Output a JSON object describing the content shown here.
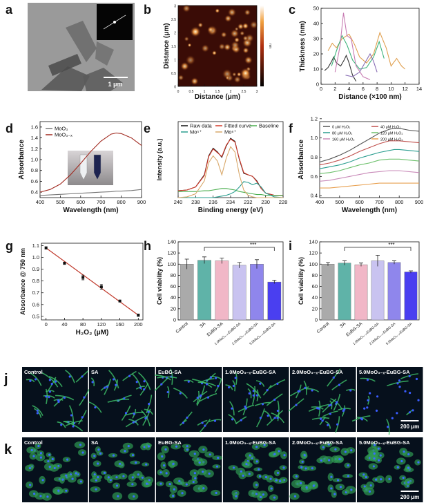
{
  "chart_data": [
    {
      "type": "image",
      "panel": "b",
      "xlabel": "Distance (μm)",
      "ylabel": "Distance (μm)",
      "colorbar_label": "nm",
      "xlim": [
        0,
        3
      ],
      "xticks": [
        0,
        0.5,
        1,
        1.5,
        2,
        2.5,
        3
      ],
      "ylim": [
        0,
        3
      ],
      "yticks": [
        0,
        0.5,
        1,
        1.5,
        2,
        2.5,
        3
      ]
    },
    {
      "type": "line",
      "panel": "c",
      "xlabel": "Distance (×100 nm)",
      "ylabel": "Thickness (nm)",
      "xlim": [
        0,
        14
      ],
      "xticks": [
        0,
        2,
        4,
        6,
        8,
        10,
        12,
        14
      ],
      "ylim": [
        0,
        50
      ],
      "yticks": [
        0,
        10,
        20,
        30,
        40,
        50
      ],
      "series": [
        {
          "color": "#333333",
          "x": [
            0.5,
            1,
            1.5,
            1.8,
            2.2,
            2.8,
            3.3,
            3.6,
            4,
            4.5,
            5
          ],
          "values": [
            9,
            11,
            15,
            18,
            14,
            12,
            16,
            19,
            14,
            6,
            2
          ]
        },
        {
          "color": "#e0a050",
          "x": [
            1,
            1.6,
            2.2,
            3,
            4,
            4.8,
            5.5,
            6.5,
            7.5,
            8.4,
            9.3,
            10,
            10.8,
            11.5,
            12
          ],
          "values": [
            22,
            27,
            24,
            30,
            33,
            26,
            18,
            14,
            20,
            34,
            24,
            12,
            17,
            12,
            10
          ]
        },
        {
          "color": "#3bb37a",
          "x": [
            1.5,
            2.2,
            3,
            3.7,
            4.5,
            5.5,
            6.5,
            7.5,
            8.3,
            9
          ],
          "values": [
            12,
            22,
            32,
            26,
            16,
            10,
            11,
            18,
            28,
            17
          ]
        },
        {
          "color": "#c77bb2",
          "x": [
            2,
            2.7,
            3.2,
            3.7,
            4.3,
            5,
            6,
            7
          ],
          "values": [
            8,
            25,
            47,
            32,
            30,
            12,
            5,
            3
          ]
        },
        {
          "color": "#8a6fb5",
          "x": [
            3.5,
            4.5,
            5.5,
            6.5,
            7,
            7.5,
            8
          ],
          "values": [
            6,
            5,
            8,
            16,
            20,
            15,
            8
          ]
        }
      ]
    },
    {
      "type": "line",
      "panel": "d",
      "xlabel": "Wavelength (nm)",
      "ylabel": "Absorbance",
      "xlim": [
        400,
        900
      ],
      "xticks": [
        400,
        500,
        600,
        700,
        800,
        900
      ],
      "ylim": [
        0.3,
        1.7
      ],
      "yticks": [
        0.4,
        0.6,
        0.8,
        {
          "value": 1,
          "label": "1.0"
        },
        1.2,
        1.4,
        1.6
      ],
      "x": [
        400,
        450,
        500,
        550,
        600,
        650,
        700,
        750,
        775,
        800,
        850,
        900
      ],
      "series": [
        {
          "name": "MoO₃",
          "color": "#777777",
          "values": [
            0.34,
            0.35,
            0.36,
            0.37,
            0.38,
            0.39,
            0.4,
            0.41,
            0.42,
            0.42,
            0.43,
            0.45
          ]
        },
        {
          "name": "MoO₃₋ₓ",
          "color": "#a0281e",
          "values": [
            0.4,
            0.45,
            0.55,
            0.72,
            0.93,
            1.15,
            1.34,
            1.47,
            1.49,
            1.48,
            1.4,
            1.26
          ]
        }
      ]
    },
    {
      "type": "line",
      "panel": "e",
      "xlabel": "Binding energy (eV)",
      "ylabel": "Intensity (a.u.)",
      "xlim": [
        240,
        228
      ],
      "xticks": [
        240,
        238,
        236,
        234,
        232,
        230,
        228
      ],
      "ylim": [
        0,
        100
      ],
      "x": [
        240,
        239,
        238,
        237,
        236.5,
        236,
        235.5,
        235,
        234.5,
        234,
        233.5,
        233,
        232.5,
        232,
        231.5,
        231,
        230.5,
        230,
        229,
        228
      ],
      "series": [
        {
          "name": "Raw data",
          "color": "#111111",
          "values": [
            9,
            10,
            14,
            30,
            55,
            65,
            60,
            53,
            68,
            78,
            74,
            50,
            32,
            30,
            28,
            22,
            12,
            6,
            3,
            3
          ]
        },
        {
          "name": "Fitted curve",
          "color": "#d43a2a",
          "values": [
            9,
            10,
            14,
            29,
            54,
            64,
            59,
            54,
            69,
            77,
            73,
            51,
            33,
            30,
            28,
            21,
            12,
            6,
            3,
            3
          ]
        },
        {
          "name": "Baseline",
          "color": "#4caf50",
          "values": [
            8,
            8,
            8,
            9,
            9,
            10,
            11,
            12,
            12,
            11,
            10,
            8,
            7,
            6,
            5,
            4,
            4,
            3,
            3,
            3
          ]
        },
        {
          "name": "Mo⁵⁺",
          "color": "#2a9d8f",
          "values": [
            0,
            0,
            0,
            0,
            0,
            0,
            1,
            2,
            3,
            5,
            8,
            14,
            21,
            20,
            17,
            19,
            14,
            6,
            1,
            0
          ]
        },
        {
          "name": "Mo⁶⁺",
          "color": "#d9a86a",
          "values": [
            0,
            1,
            5,
            22,
            46,
            55,
            48,
            30,
            52,
            67,
            60,
            30,
            10,
            3,
            1,
            0,
            0,
            0,
            0,
            0
          ]
        }
      ]
    },
    {
      "type": "line",
      "panel": "f",
      "xlabel": "Wavelength (nm)",
      "ylabel": "Absorbance",
      "xlim": [
        400,
        900
      ],
      "xticks": [
        400,
        500,
        600,
        700,
        800,
        900
      ],
      "ylim": [
        0.38,
        1.17
      ],
      "yticks": [
        0.4,
        0.6,
        0.8,
        {
          "value": 1,
          "label": "1.0"
        },
        1.2
      ],
      "x": [
        400,
        450,
        500,
        550,
        600,
        650,
        700,
        750,
        775,
        800,
        850,
        900
      ],
      "series": [
        {
          "name": "0 μM H₂O₂",
          "color": "#555555",
          "values": [
            0.75,
            0.78,
            0.82,
            0.87,
            0.93,
            0.99,
            1.05,
            1.09,
            1.1,
            1.1,
            1.08,
            1.07
          ]
        },
        {
          "name": "40 μM H₂O₂",
          "color": "#c0504d",
          "values": [
            0.72,
            0.74,
            0.77,
            0.81,
            0.86,
            0.9,
            0.94,
            0.97,
            0.97,
            0.97,
            0.96,
            0.95
          ]
        },
        {
          "name": "80 μM H₂O₂",
          "color": "#2a9d8f",
          "values": [
            0.68,
            0.7,
            0.72,
            0.75,
            0.79,
            0.82,
            0.85,
            0.87,
            0.88,
            0.88,
            0.87,
            0.86
          ]
        },
        {
          "name": "120 μM H₂O₂",
          "color": "#6abf69",
          "values": [
            0.63,
            0.64,
            0.66,
            0.69,
            0.72,
            0.74,
            0.77,
            0.78,
            0.78,
            0.78,
            0.77,
            0.76
          ]
        },
        {
          "name": "160 μM H₂O₂",
          "color": "#c98bb9",
          "values": [
            0.55,
            0.56,
            0.58,
            0.6,
            0.62,
            0.64,
            0.65,
            0.66,
            0.66,
            0.66,
            0.65,
            0.64
          ]
        },
        {
          "name": "200 μM H₂O₂",
          "color": "#e8a050",
          "values": [
            0.48,
            0.48,
            0.49,
            0.5,
            0.51,
            0.52,
            0.53,
            0.53,
            0.53,
            0.53,
            0.53,
            0.53
          ]
        }
      ]
    },
    {
      "type": "scatter",
      "panel": "g",
      "xlabel": "H₂O₂ (μM)",
      "ylabel": "Absorbance @ 750 nm",
      "xlim": [
        -10,
        210
      ],
      "xticks": [
        0,
        40,
        80,
        120,
        160,
        200
      ],
      "ylim": [
        0.47,
        1.12
      ],
      "yticks": [
        0.5,
        0.6,
        0.7,
        0.8,
        0.9,
        {
          "value": 1,
          "label": "1.0"
        },
        1.1
      ],
      "x": [
        0,
        40,
        80,
        120,
        160,
        200
      ],
      "values": [
        1.08,
        0.95,
        0.83,
        0.75,
        0.63,
        0.51
      ],
      "errors": [
        0.01,
        0.01,
        0.02,
        0.02,
        0.005,
        0.01
      ],
      "color": "#111111",
      "fit_line": {
        "color": "#c0392b",
        "x": [
          0,
          200
        ],
        "values": [
          1.08,
          0.51
        ]
      }
    },
    {
      "type": "bar",
      "panel": "h",
      "ylabel": "Cell viability (%)",
      "ylim": [
        0,
        140
      ],
      "yticks": [
        0,
        20,
        40,
        60,
        80,
        100,
        120,
        140
      ],
      "categories": [
        "Control",
        "SA",
        "EuBG-SA",
        "1.0MoO₃₋ₓ-EuBG-SA",
        "2.0MoO₃₋ₓ-EuBG-SA",
        "5.0MoO₃₋ₓ-EuBG-SA"
      ],
      "values": [
        100,
        107,
        106,
        98,
        100,
        68
      ],
      "errors": [
        9,
        6,
        5,
        5,
        8,
        3
      ],
      "colors": [
        "#aaaaaa",
        "#5fb3a8",
        "#f1b7c7",
        "#c9c3f0",
        "#8f86ec",
        "#4a3ff0"
      ],
      "significance": "***"
    },
    {
      "type": "bar",
      "panel": "i",
      "ylabel": "Cell viability (%)",
      "ylim": [
        0,
        140
      ],
      "yticks": [
        0,
        20,
        40,
        60,
        80,
        100,
        120,
        140
      ],
      "categories": [
        "Control",
        "SA",
        "EuBG-SA",
        "1.0MoO₃₋ₓ-EuBG-SA",
        "2.0MoO₃₋ₓ-EuBG-SA",
        "5.0MoO₃₋ₓ-EuBG-SA"
      ],
      "values": [
        100,
        102,
        99,
        106,
        103,
        86
      ],
      "errors": [
        3,
        4,
        3,
        10,
        3,
        2
      ],
      "colors": [
        "#aaaaaa",
        "#5fb3a8",
        "#f1b7c7",
        "#c9c3f0",
        "#8f86ec",
        "#4a3ff0"
      ],
      "significance": "***"
    }
  ],
  "images": [
    {
      "panel": "a",
      "scale_bar": "1 μm"
    },
    {
      "panel": "j",
      "labels": [
        "Control",
        "SA",
        "EuBG-SA",
        "1.0MoO₃₋ₓ-EuBG-SA",
        "2.0MoO₃₋ₓ-EuBG-SA",
        "5.0MoO₃₋ₓ-EuBG-SA"
      ],
      "scale_bar": "200 μm"
    },
    {
      "panel": "k",
      "labels": [
        "Control",
        "SA",
        "EuBG-SA",
        "1.0MoO₃₋ₓ-EuBG-SA",
        "2.0MoO₃₋ₓ-EuBG-SA",
        "5.0MoO₃₋ₓ-EuBG-SA"
      ],
      "scale_bar": "200 μm"
    }
  ]
}
